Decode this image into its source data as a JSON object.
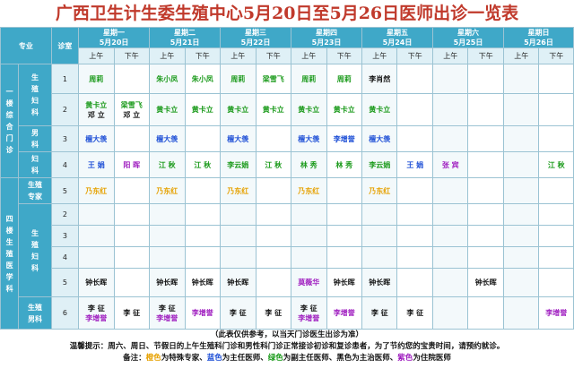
{
  "title": "广西卫生计生委生殖中心5月20日至5月26日医师出诊一览表",
  "header": {
    "specialty": "专业",
    "room": "诊室",
    "am": "上午",
    "pm": "下午"
  },
  "days": [
    {
      "name": "星期一",
      "date": "5月20日"
    },
    {
      "name": "星期二",
      "date": "5月21日"
    },
    {
      "name": "星期三",
      "date": "5月22日"
    },
    {
      "name": "星期四",
      "date": "5月23日"
    },
    {
      "name": "星期五",
      "date": "5月24日"
    },
    {
      "name": "星期六",
      "date": "5月25日"
    },
    {
      "name": "星期日",
      "date": "5月26日"
    }
  ],
  "sections": {
    "first_floor": [
      "一",
      "楼",
      "综",
      "合",
      "门",
      "诊"
    ],
    "fourth_floor": [
      "四",
      "楼",
      "生",
      "殖",
      "医",
      "学",
      "科"
    ]
  },
  "specialties": {
    "repro_gyn": [
      "生",
      "殖",
      "妇",
      "科"
    ],
    "andrology": [
      "男",
      "科"
    ],
    "gynecology": [
      "妇",
      "科"
    ],
    "repro_expert": [
      "生殖",
      "专家"
    ],
    "repro_gyn2": [
      "生",
      "殖",
      "妇",
      "科"
    ],
    "repro_andro": [
      "生殖",
      "男科"
    ]
  },
  "rows": [
    {
      "room": "1",
      "cells": [
        [
          {
            "t": "周莉",
            "c": "green"
          }
        ],
        [],
        [
          {
            "t": "朱小凤",
            "c": "green"
          }
        ],
        [
          {
            "t": "朱小凤",
            "c": "green"
          }
        ],
        [
          {
            "t": "周莉",
            "c": "green"
          }
        ],
        [
          {
            "t": "梁雪飞",
            "c": "green"
          }
        ],
        [
          {
            "t": "周莉",
            "c": "green"
          }
        ],
        [
          {
            "t": "周莉",
            "c": "green"
          }
        ],
        [
          {
            "t": "李肖然",
            "c": "black"
          }
        ],
        [],
        [],
        [],
        [],
        []
      ]
    },
    {
      "room": "2",
      "cells": [
        [
          {
            "t": "黄卡立",
            "c": "green"
          },
          {
            "t": "邓 立",
            "c": "black"
          }
        ],
        [
          {
            "t": "梁雪飞",
            "c": "green"
          },
          {
            "t": "邓 立",
            "c": "black"
          }
        ],
        [
          {
            "t": "黄卡立",
            "c": "green"
          }
        ],
        [
          {
            "t": "黄卡立",
            "c": "green"
          }
        ],
        [
          {
            "t": "黄卡立",
            "c": "green"
          }
        ],
        [
          {
            "t": "黄卡立",
            "c": "green"
          }
        ],
        [
          {
            "t": "黄卡立",
            "c": "green"
          }
        ],
        [
          {
            "t": "黄卡立",
            "c": "green"
          }
        ],
        [
          {
            "t": "黄卡立",
            "c": "green"
          }
        ],
        [],
        [],
        [],
        [],
        []
      ]
    },
    {
      "room": "3",
      "cells": [
        [
          {
            "t": "檀大羡",
            "c": "blue"
          }
        ],
        [],
        [
          {
            "t": "檀大羡",
            "c": "blue"
          }
        ],
        [],
        [
          {
            "t": "檀大羡",
            "c": "blue"
          }
        ],
        [],
        [
          {
            "t": "檀大羡",
            "c": "blue"
          }
        ],
        [
          {
            "t": "李增誉",
            "c": "blue"
          }
        ],
        [
          {
            "t": "檀大羡",
            "c": "blue"
          }
        ],
        [],
        [],
        [],
        [],
        []
      ]
    },
    {
      "room": "4",
      "cells": [
        [
          {
            "t": "王 娟",
            "c": "blue"
          }
        ],
        [
          {
            "t": "阳 晖",
            "c": "purple"
          }
        ],
        [
          {
            "t": "江 秋",
            "c": "green"
          }
        ],
        [
          {
            "t": "江 秋",
            "c": "green"
          }
        ],
        [
          {
            "t": "李云娟",
            "c": "green"
          }
        ],
        [
          {
            "t": "江 秋",
            "c": "green"
          }
        ],
        [
          {
            "t": "林 秀",
            "c": "green"
          }
        ],
        [
          {
            "t": "林 秀",
            "c": "green"
          }
        ],
        [
          {
            "t": "李云娟",
            "c": "green"
          }
        ],
        [
          {
            "t": "王 娟",
            "c": "blue"
          }
        ],
        [
          {
            "t": "张 宾",
            "c": "purple"
          }
        ],
        [],
        [],
        [
          {
            "t": "江 秋",
            "c": "green"
          }
        ]
      ]
    },
    {
      "room": "5",
      "cells": [
        [
          {
            "t": "乃东红",
            "c": "orange"
          }
        ],
        [],
        [
          {
            "t": "乃东红",
            "c": "orange"
          }
        ],
        [],
        [
          {
            "t": "乃东红",
            "c": "orange"
          }
        ],
        [],
        [
          {
            "t": "乃东红",
            "c": "orange"
          }
        ],
        [],
        [
          {
            "t": "乃东红",
            "c": "orange"
          }
        ],
        [],
        [],
        [],
        [],
        []
      ]
    },
    {
      "room": "2",
      "cells": [
        [],
        [],
        [],
        [],
        [],
        [],
        [],
        [],
        [],
        [],
        [],
        [],
        [],
        []
      ]
    },
    {
      "room": "3",
      "cells": [
        [],
        [],
        [],
        [],
        [],
        [],
        [],
        [],
        [],
        [],
        [],
        [],
        [],
        []
      ]
    },
    {
      "room": "4",
      "cells": [
        [],
        [],
        [],
        [],
        [],
        [],
        [],
        [],
        [],
        [],
        [],
        [],
        [],
        []
      ]
    },
    {
      "room": "5",
      "cells": [
        [
          {
            "t": "钟长晖",
            "c": "black"
          }
        ],
        [],
        [
          {
            "t": "钟长晖",
            "c": "black"
          }
        ],
        [
          {
            "t": "钟长晖",
            "c": "black"
          }
        ],
        [
          {
            "t": "钟长晖",
            "c": "black"
          }
        ],
        [],
        [
          {
            "t": "莫薇华",
            "c": "purple"
          }
        ],
        [
          {
            "t": "钟长晖",
            "c": "black"
          }
        ],
        [
          {
            "t": "钟长晖",
            "c": "black"
          }
        ],
        [],
        [],
        [
          {
            "t": "钟长晖",
            "c": "black"
          }
        ],
        [],
        []
      ]
    },
    {
      "room": "6",
      "cells": [
        [
          {
            "t": "李 征",
            "c": "black"
          },
          {
            "t": "李增誉",
            "c": "purple"
          }
        ],
        [
          {
            "t": "李 征",
            "c": "black"
          }
        ],
        [
          {
            "t": "李 征",
            "c": "black"
          },
          {
            "t": "李增誉",
            "c": "purple"
          }
        ],
        [
          {
            "t": "李增誉",
            "c": "purple"
          }
        ],
        [
          {
            "t": "李 征",
            "c": "black"
          }
        ],
        [
          {
            "t": "李 征",
            "c": "black"
          }
        ],
        [
          {
            "t": "李 征",
            "c": "black"
          },
          {
            "t": "李增誉",
            "c": "purple"
          }
        ],
        [
          {
            "t": "李增誉",
            "c": "purple"
          }
        ],
        [
          {
            "t": "李 征",
            "c": "black"
          }
        ],
        [
          {
            "t": "李 征",
            "c": "black"
          }
        ],
        [],
        [],
        [],
        [
          {
            "t": "李增誉",
            "c": "purple"
          }
        ]
      ]
    }
  ],
  "notes": {
    "disclaimer": "（此表仅供参考，以当天门诊医生出诊为准）",
    "tip": "温馨提示：周六、周日、节假日的上午生殖科门诊和男性科门诊正常接诊初诊和复诊患者，为了节约您的宝贵时间，请预约就诊。",
    "legend_prefix": "备注：",
    "legend": [
      {
        "color_word": "橙色",
        "text": "为特殊专家、",
        "c": "orange"
      },
      {
        "color_word": "蓝色",
        "text": "为主任医师、",
        "c": "blue"
      },
      {
        "color_word": "绿色",
        "text": "为副主任医师、",
        "c": "green"
      },
      {
        "color_word": "黑色",
        "text": "为主治医师、",
        "c": "black"
      },
      {
        "color_word": "紫色",
        "text": "为住院医师",
        "c": "purple"
      }
    ]
  },
  "colors": {
    "header_bg": "#3fa8c8",
    "title": "#c0392b",
    "orange": "#e6a100",
    "blue": "#1e4fd6",
    "green": "#1a9a1a",
    "black": "#111111",
    "purple": "#a020c0"
  }
}
